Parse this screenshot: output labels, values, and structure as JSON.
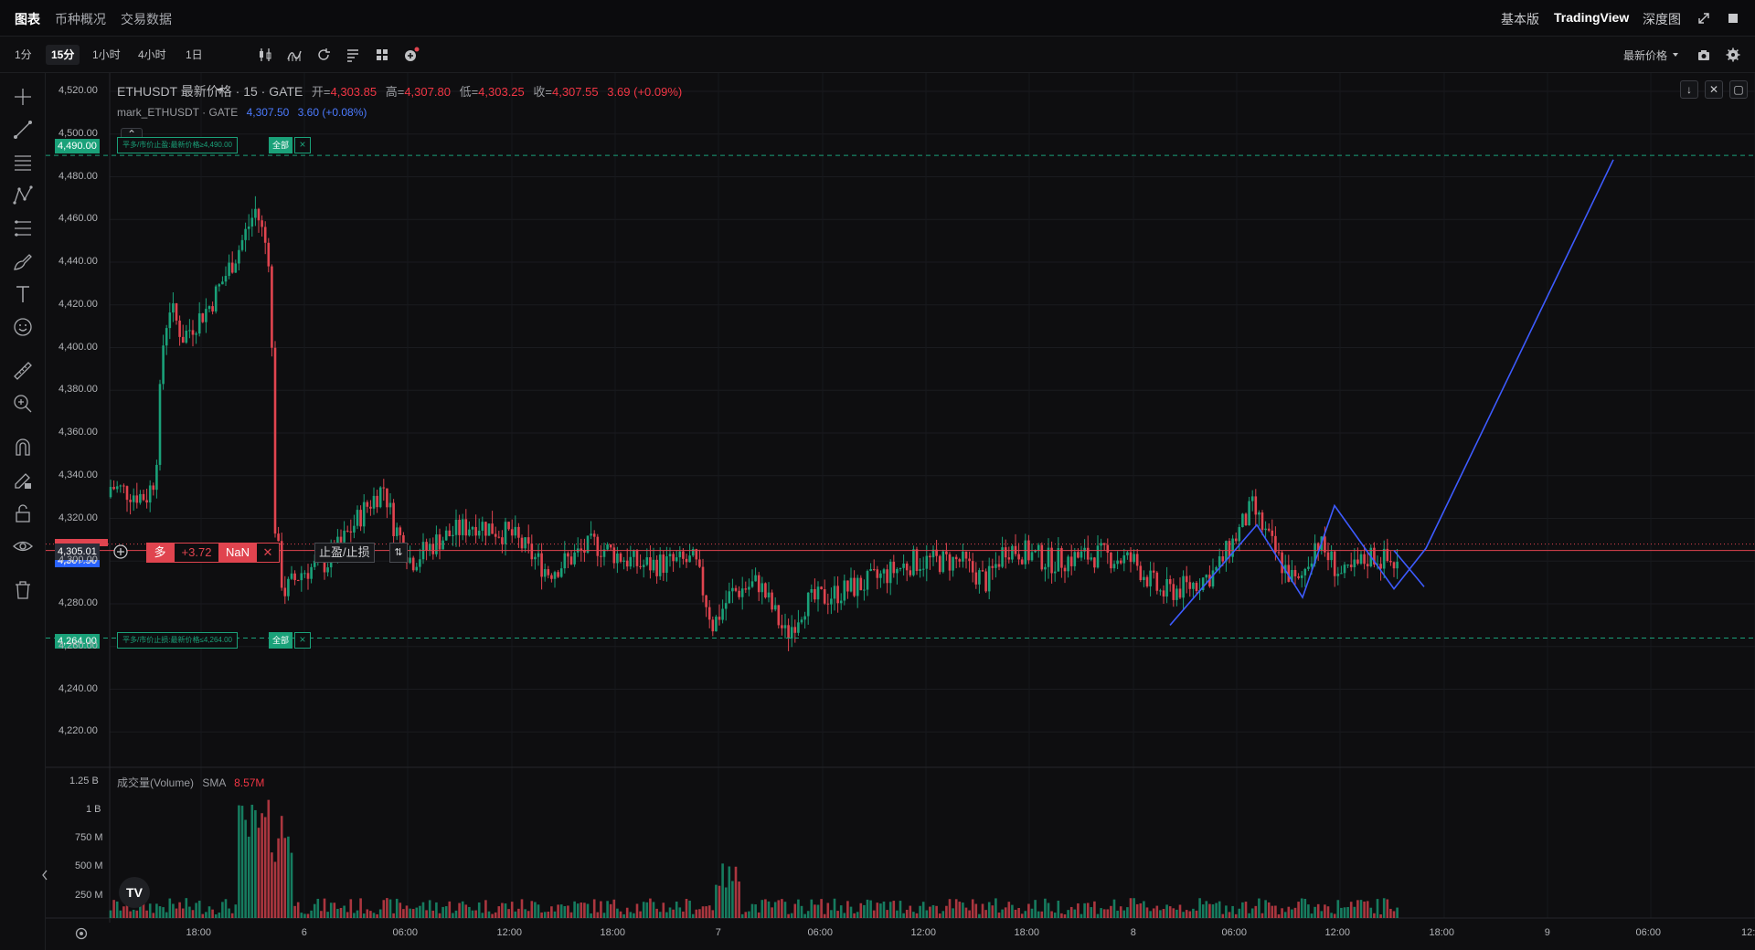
{
  "topbar": {
    "tabs": [
      "图表",
      "币种概况",
      "交易数据"
    ],
    "right": [
      "基本版",
      "TradingView",
      "深度图"
    ]
  },
  "toolbar": {
    "intervals": [
      "1分",
      "15分",
      "1小时",
      "4小时",
      "1日"
    ],
    "active_interval": "15分",
    "price_source": "最新价格"
  },
  "legend": {
    "symbol": "ETHUSDT 最新价格 · 15 · GATE",
    "open_label": "开=",
    "open": "4,303.85",
    "high_label": "高=",
    "high": "4,307.80",
    "low_label": "低=",
    "low": "4,303.25",
    "close_label": "收=",
    "close": "4,307.55",
    "change": "3.69 (+0.09%)",
    "mark_symbol": "mark_ETHUSDT · GATE",
    "mark_value": "4,307.50",
    "mark_change": "3.60 (+0.08%)"
  },
  "volume": {
    "label": "成交量(Volume)",
    "sma_label": "SMA",
    "sma_value": "8.57M",
    "axis": [
      "1.25 B",
      "1 B",
      "750 M",
      "500 M",
      "250 M"
    ]
  },
  "price_axis": [
    "4,520.00",
    "4,500.00",
    "4,480.00",
    "4,460.00",
    "4,440.00",
    "4,420.00",
    "4,400.00",
    "4,380.00",
    "4,360.00",
    "4,340.00",
    "4,320.00",
    "4,300.00",
    "4,280.00",
    "4,260.00",
    "4,240.00",
    "4,220.00"
  ],
  "time_axis": [
    "18:00",
    "6",
    "06:00",
    "12:00",
    "18:00",
    "7",
    "06:00",
    "12:00",
    "18:00",
    "8",
    "06:00",
    "12:00",
    "18:00",
    "9",
    "06:00",
    "12:"
  ],
  "orders": {
    "take_profit": {
      "price": "4,490.00",
      "text": "平多/市价止盈:最新价格≥4,490.00",
      "all": "全部"
    },
    "stop_loss": {
      "price": "4,264.00",
      "text": "平多/市价止损:最新价格≤4,264.00",
      "all": "全部"
    }
  },
  "position": {
    "side": "多",
    "pnl": "+3.72",
    "nan": "NaN",
    "close": "✕",
    "tp_sl": "止盈/止损",
    "move": "⇅"
  },
  "current_price": "4,305.01",
  "colors": {
    "up": "#1aa179",
    "down": "#e0444f",
    "line": "#3d5bff",
    "bg": "#0e0e10"
  },
  "chart_data": {
    "type": "candlestick",
    "title": "ETHUSDT 最新价格 · 15 · GATE",
    "ylim": [
      4212,
      4526
    ],
    "key_prices": {
      "take_profit": 4490,
      "stop_loss": 4264,
      "current": 4305.01
    },
    "projection_line": [
      [
        4269,
        4280
      ],
      [
        4327,
        4296
      ],
      [
        4279,
        4326
      ],
      [
        4305,
        4290
      ],
      [
        4290,
        4488
      ]
    ]
  }
}
